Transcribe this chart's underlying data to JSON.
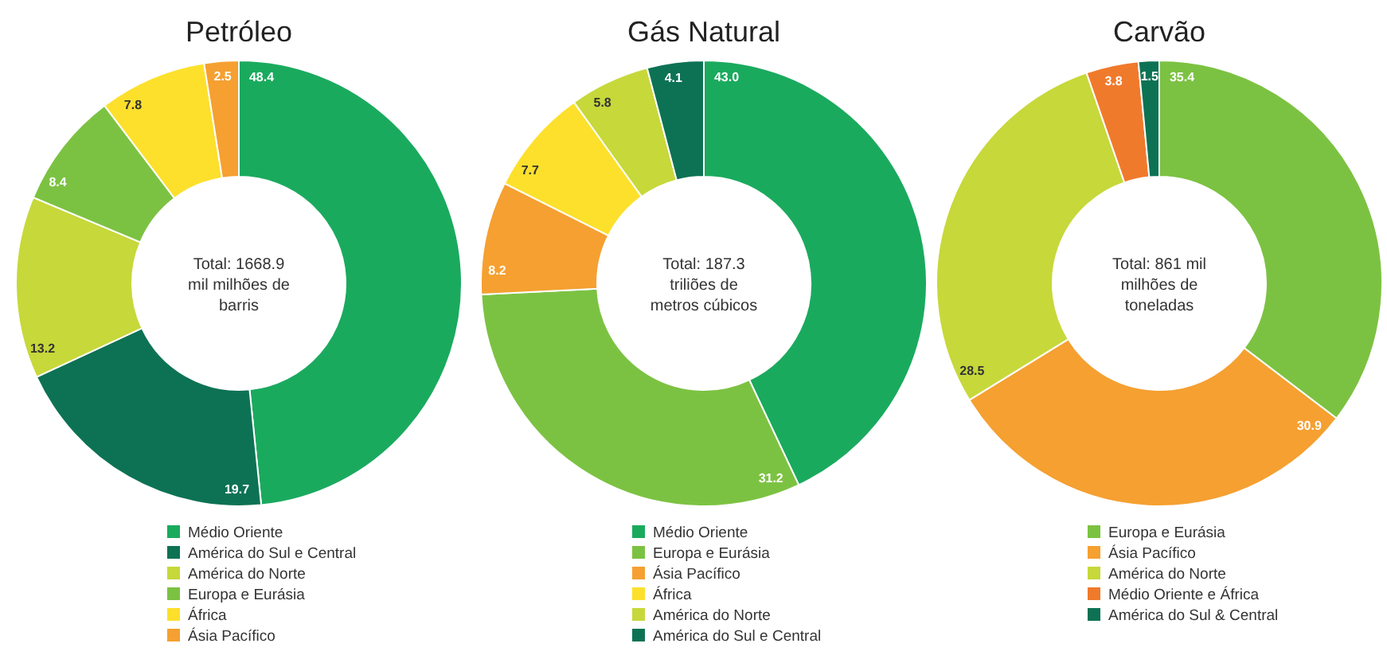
{
  "chart_data": [
    {
      "type": "donut",
      "title": "Petróleo",
      "categories": [
        "Médio Oriente",
        "América do Sul e Central",
        "América do Norte",
        "Europa e Eurásia",
        "África",
        "Ásia Pacífico"
      ],
      "values": [
        48.4,
        19.7,
        13.2,
        8.4,
        7.8,
        2.5
      ],
      "colors": [
        "#1aaa5e",
        "#0d7254",
        "#c7d83a",
        "#7cc242",
        "#fde02c",
        "#f5a031"
      ],
      "value_labels": [
        "48.4",
        "19.7",
        "13.2",
        "8.4",
        "7.8",
        "2.5"
      ],
      "annotations": [
        "Total: 1668.9\nmil milhões de\nbarris"
      ],
      "legend": "bottom"
    },
    {
      "type": "donut",
      "title": "Gás Natural",
      "categories": [
        "Médio Oriente",
        "Europa e Eurásia",
        "Ásia Pacífico",
        "África",
        "América do Norte",
        "América do Sul e Central"
      ],
      "values": [
        43.0,
        31.2,
        8.2,
        7.7,
        5.8,
        4.1
      ],
      "colors": [
        "#1aaa5e",
        "#7cc242",
        "#f5a031",
        "#fde02c",
        "#c7d83a",
        "#0d7254"
      ],
      "value_labels": [
        "43.0",
        "31.2",
        "8.2",
        "7.7",
        "5.8",
        "4.1"
      ],
      "annotations": [
        "Total: 187.3\ntriliões de\nmetros cúbicos"
      ],
      "legend": "bottom"
    },
    {
      "type": "donut",
      "title": "Carvão",
      "categories": [
        "Europa e Eurásia",
        "Ásia Pacífico",
        "América do Norte",
        "Médio Oriente e África",
        "América do Sul & Central"
      ],
      "values": [
        35.4,
        30.9,
        28.5,
        3.8,
        1.5
      ],
      "colors": [
        "#7cc242",
        "#f5a031",
        "#c7d83a",
        "#f07a2c",
        "#0d7254"
      ],
      "value_labels": [
        "35.4",
        "30.9",
        "28.5",
        "3.8",
        "1.5"
      ],
      "annotations": [
        "Total: 861 mil\nmilhões de\ntoneladas"
      ],
      "legend": "bottom"
    }
  ]
}
